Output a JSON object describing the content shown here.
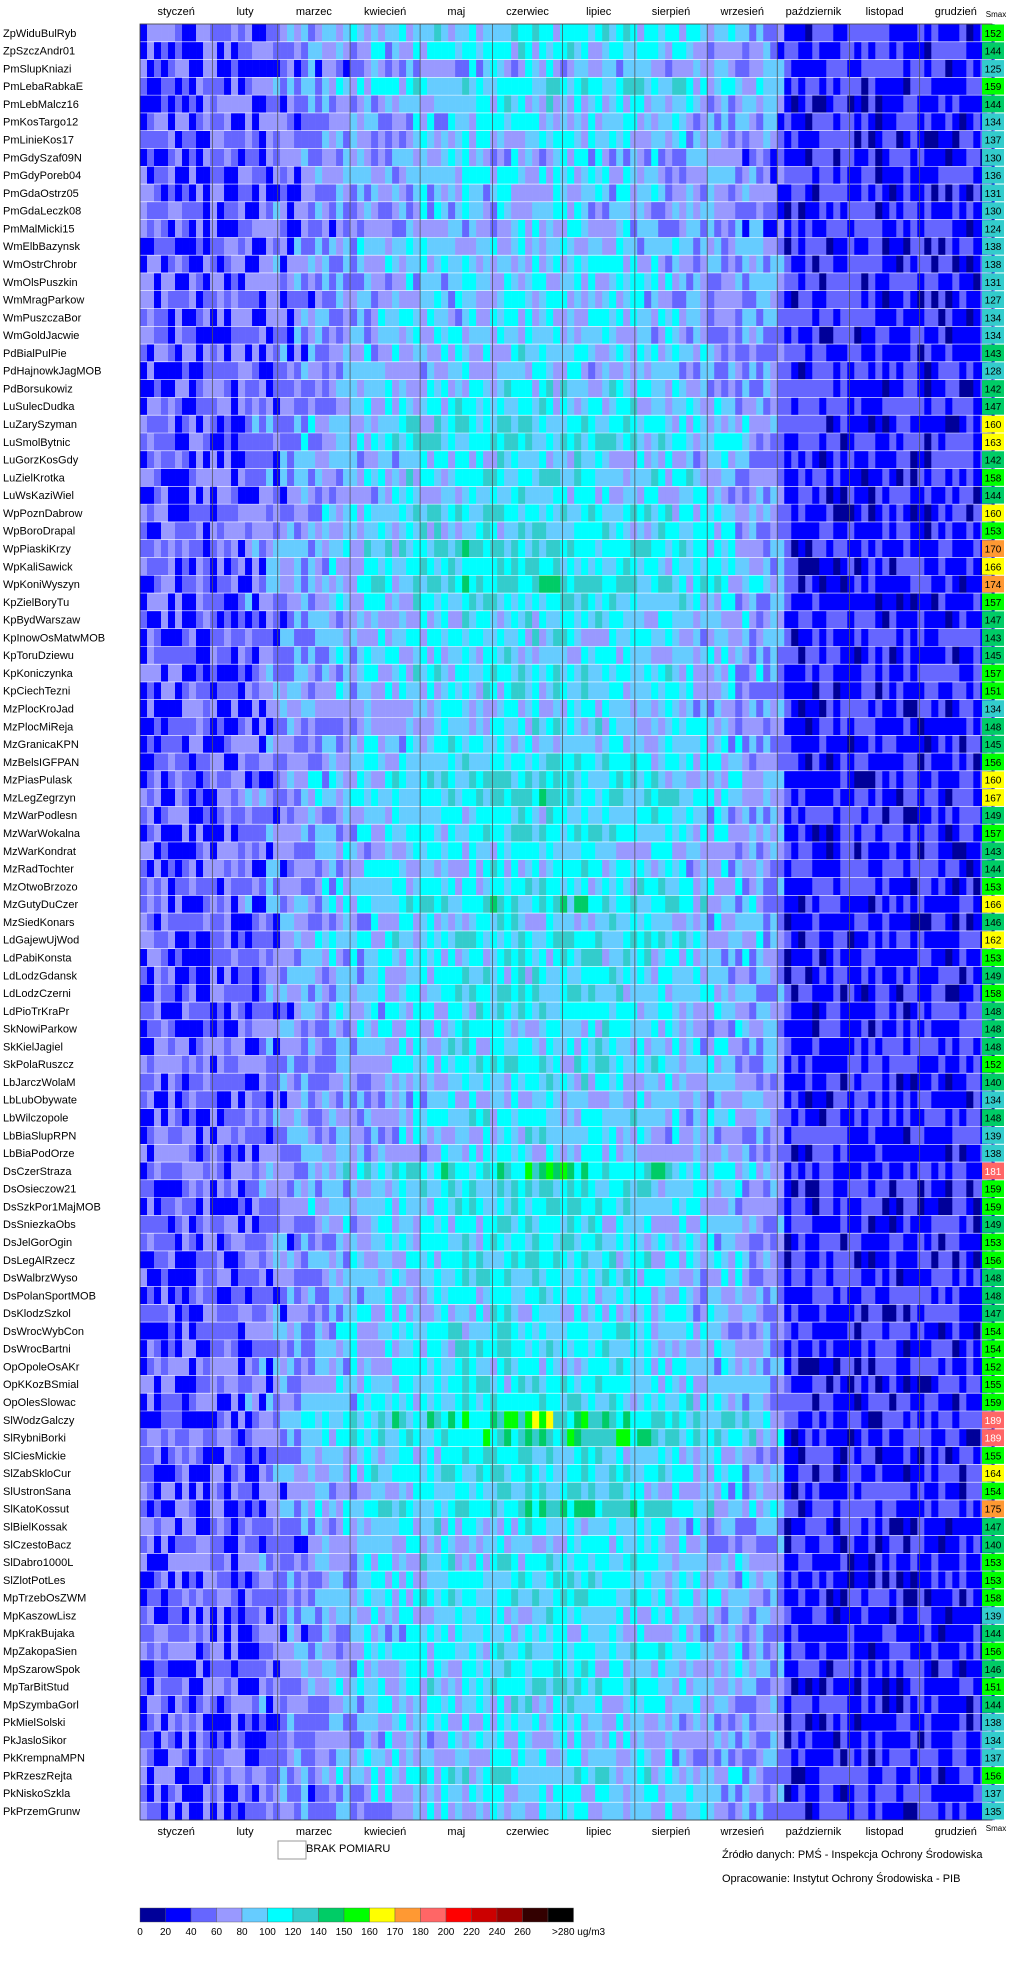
{
  "chart_data": {
    "type": "heatmap",
    "months": [
      "styczeń",
      "luty",
      "marzec",
      "kwiecień",
      "maj",
      "czerwiec",
      "lipiec",
      "sierpień",
      "wrzesień",
      "październik",
      "listopad",
      "grudzień"
    ],
    "smax_label": "Smax",
    "stations": [
      "ZpWiduBulRyb",
      "ZpSzczAndr01",
      "PmSlupKniazi",
      "PmLebaRabkaE",
      "PmLebMalcz16",
      "PmKosTargo12",
      "PmLinieKos17",
      "PmGdySzaf09N",
      "PmGdyPoreb04",
      "PmGdaOstrz05",
      "PmGdaLeczk08",
      "PmMalMicki15",
      "WmElbBazynsk",
      "WmOstrChrobr",
      "WmOlsPuszkin",
      "WmMragParkow",
      "WmPuszczaBor",
      "WmGoldJacwie",
      "PdBialPulPie",
      "PdHajnowkJagMOB",
      "PdBorsukowiz",
      "LuSulecDudka",
      "LuZarySzyman",
      "LuSmolBytnic",
      "LuGorzKosGdy",
      "LuZielKrotka",
      "LuWsKaziWiel",
      "WpPoznDabrow",
      "WpBoroDrapal",
      "WpPiaskiKrzy",
      "WpKaliSawick",
      "WpKoniWyszyn",
      "KpZielBoryTu",
      "KpBydWarszaw",
      "KpInowOsMatwMOB",
      "KpToruDziewu",
      "KpKoniczynka",
      "KpCiechTezni",
      "MzPlocKroJad",
      "MzPlocMiReja",
      "MzGranicaKPN",
      "MzBelsIGFPAN",
      "MzPiasPulask",
      "MzLegZegrzyn",
      "MzWarPodlesn",
      "MzWarWokalna",
      "MzWarKondrat",
      "MzRadTochter",
      "MzOtwoBrzozo",
      "MzGutyDuCzer",
      "MzSiedKonars",
      "LdGajewUjWod",
      "LdPabiKonsta",
      "LdLodzGdansk",
      "LdLodzCzerni",
      "LdPioTrKraPr",
      "SkNowiParkow",
      "SkKielJagiel",
      "SkPolaRuszcz",
      "LbJarczWolaM",
      "LbLubObywate",
      "LbWilczopole",
      "LbBiaSlupRPN",
      "LbBiaPodOrze",
      "DsCzerStraza",
      "DsOsieczow21",
      "DsSzkPor1MajMOB",
      "DsSniezkaObs",
      "DsJelGorOgin",
      "DsLegAlRzecz",
      "DsWalbrzWyso",
      "DsPolanSportMOB",
      "DsKlodzSzkol",
      "DsWrocWybCon",
      "DsWrocBartni",
      "OpOpoleOsAKr",
      "OpKKozBSmial",
      "OpOlesSlowac",
      "SlWodzGalczy",
      "SlRybniBorki",
      "SlCiesMickie",
      "SlZabSkloCur",
      "SlUstronSana",
      "SlKatoKossut",
      "SlBielKossak",
      "SlCzestoBacz",
      "SlDabro1000L",
      "SlZlotPotLes",
      "MpTrzebOsZWM",
      "MpKaszowLisz",
      "MpKrakBujaka",
      "MpZakopaSien",
      "MpSzarowSpok",
      "MpTarBitStud",
      "MpSzymbaGorl",
      "PkMielSolski",
      "PkJasloSikor",
      "PkKrempnaMPN",
      "PkRzeszRejta",
      "PkNiskoSzkla",
      "PkPrzemGrunw"
    ],
    "smax": [
      152,
      144,
      125,
      159,
      144,
      134,
      137,
      130,
      136,
      131,
      130,
      124,
      138,
      138,
      131,
      127,
      134,
      134,
      143,
      128,
      142,
      147,
      160,
      163,
      142,
      158,
      144,
      160,
      153,
      170,
      166,
      174,
      157,
      147,
      143,
      145,
      157,
      151,
      134,
      148,
      145,
      156,
      160,
      167,
      149,
      157,
      143,
      144,
      153,
      166,
      146,
      162,
      153,
      149,
      158,
      148,
      148,
      148,
      152,
      140,
      134,
      148,
      139,
      138,
      181,
      159,
      159,
      149,
      153,
      156,
      148,
      148,
      147,
      154,
      154,
      152,
      155,
      159,
      189,
      189,
      155,
      164,
      154,
      175,
      147,
      140,
      153,
      153,
      158,
      139,
      144,
      156,
      146,
      151,
      144,
      138,
      134,
      137,
      156,
      137,
      135
    ],
    "legend": {
      "ticks": [
        "0",
        "20",
        "40",
        "60",
        "80",
        "100",
        "120",
        "140",
        "150",
        "160",
        "170",
        "180",
        "200",
        "220",
        "240",
        "260",
        ">280 ug/m3"
      ],
      "colors": [
        "#000099",
        "#0000ff",
        "#6666ff",
        "#9999ff",
        "#66ccff",
        "#00ffff",
        "#33cccc",
        "#00cc66",
        "#00ff00",
        "#ffff00",
        "#ff9933",
        "#ff6666",
        "#ff0000",
        "#cc0000",
        "#990000",
        "#330000",
        "#000000"
      ]
    },
    "missing_label": "BRAK POMIARU",
    "source": "Źródło danych: PMŚ - Inspekcja Ochrony Środowiska",
    "author": "Opracowanie: Instytut Ochrony Środowiska - PIB",
    "x_unit": "days of year (365)",
    "value_unit": "ug/m3"
  }
}
